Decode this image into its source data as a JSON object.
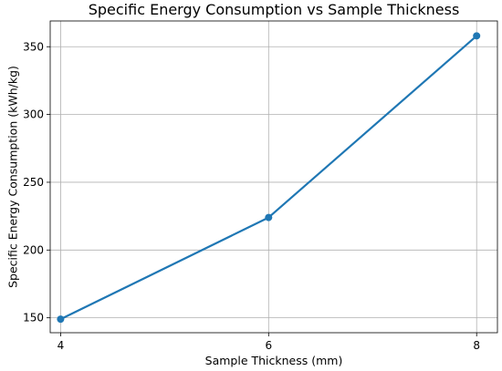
{
  "chart_data": {
    "type": "line",
    "title": "Specific Energy Consumption vs Sample Thickness",
    "xlabel": "Sample Thickness (mm)",
    "ylabel": "Specific Energy Consumption (kWh/kg)",
    "x": [
      4,
      6,
      8
    ],
    "series": [
      {
        "values": [
          149,
          224,
          358
        ],
        "color": "#1f77b4",
        "marker": "circle"
      }
    ],
    "xlim": [
      3.9,
      8.2
    ],
    "ylim": [
      139,
      369
    ],
    "xticks": [
      4,
      6,
      8
    ],
    "xtick_labels": [
      "4",
      "6",
      "8"
    ],
    "yticks": [
      150,
      200,
      250,
      300,
      350
    ],
    "ytick_labels": [
      "150",
      "200",
      "250",
      "300",
      "350"
    ],
    "grid": true
  }
}
